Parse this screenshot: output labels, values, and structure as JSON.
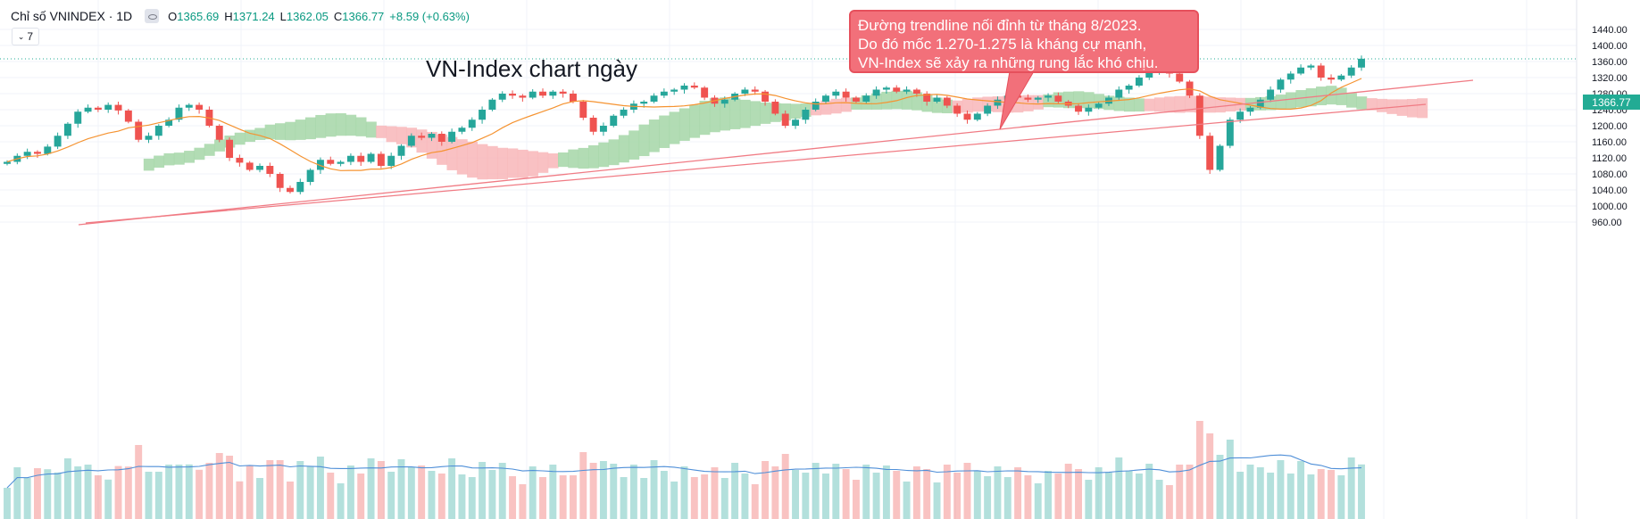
{
  "header": {
    "symbol": "Chỉ số VNINDEX · 1D",
    "open_label": "O",
    "open": "1365.69",
    "high_label": "H",
    "high": "1371.24",
    "low_label": "L",
    "low": "1362.05",
    "close_label": "C",
    "close": "1366.77",
    "change": "+8.59 (+0.63%)",
    "indicator_count": "7"
  },
  "title": "VN-Index chart ngày",
  "annotation": {
    "line1": "Đường trendline nối đỉnh từ tháng 8/2023.",
    "line2": "Do đó mốc 1.270-1.275 là kháng cự mạnh,",
    "line3": "VN-Index sẽ xảy ra những rung lắc khó chịu."
  },
  "last_price_label": "1366.77",
  "colors": {
    "up": "#26a69a",
    "down": "#ef5350",
    "ma": "#f59331",
    "volume_ma": "#4f8fd8",
    "cloud_bull": "#a5d6a7",
    "cloud_bear": "#f8b6b8",
    "trendline": "#f07b84",
    "price_line": "#22ab94"
  },
  "chart_data": {
    "type": "line",
    "xlabel": "",
    "ylabel": "",
    "ylim": [
      950,
      1450
    ],
    "y_ticks": [
      "1440.00",
      "1400.00",
      "1360.00",
      "1320.00",
      "1280.00",
      "1240.00",
      "1200.00",
      "1160.00",
      "1120.00",
      "1080.00",
      "1040.00",
      "1000.00",
      "960.00"
    ],
    "y_tick_values": [
      1440,
      1400,
      1360,
      1320,
      1280,
      1240,
      1200,
      1160,
      1120,
      1080,
      1040,
      1000,
      960
    ],
    "series": [
      {
        "values": [
          1110,
          1125,
          1135,
          1130,
          1148,
          1175,
          1205,
          1235,
          1245,
          1240,
          1252,
          1238,
          1210,
          1165,
          1175,
          1200,
          1215,
          1245,
          1252,
          1240,
          1200,
          1165,
          1120,
          1108,
          1090,
          1100,
          1080,
          1045,
          1035,
          1060,
          1090,
          1115,
          1105,
          1110,
          1125,
          1110,
          1130,
          1100,
          1125,
          1150,
          1175,
          1170,
          1180,
          1160,
          1185,
          1195,
          1215,
          1240,
          1265,
          1280,
          1275,
          1270,
          1285,
          1275,
          1285,
          1280,
          1260,
          1220,
          1185,
          1200,
          1225,
          1240,
          1255,
          1260,
          1275,
          1285,
          1290,
          1300,
          1295,
          1270,
          1255,
          1265,
          1280,
          1290,
          1285,
          1260,
          1230,
          1200,
          1215,
          1240,
          1260,
          1275,
          1285,
          1270,
          1260,
          1275,
          1290,
          1295,
          1285,
          1290,
          1280,
          1260,
          1270,
          1250,
          1230,
          1215,
          1230,
          1250,
          1265,
          1275,
          1270,
          1265,
          1270,
          1275,
          1260,
          1250,
          1235,
          1245,
          1255,
          1270,
          1290,
          1300,
          1320,
          1335,
          1335,
          1330,
          1310,
          1275,
          1175,
          1090,
          1150,
          1215,
          1235,
          1245,
          1265,
          1290,
          1315,
          1330,
          1345,
          1350,
          1320,
          1315,
          1325,
          1345,
          1367
        ]
      }
    ]
  }
}
